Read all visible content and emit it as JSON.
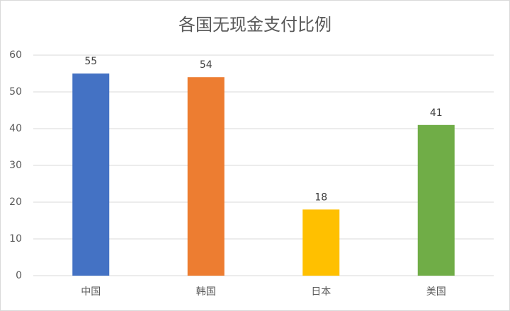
{
  "chart_data": {
    "type": "bar",
    "title": "各国无现金支付比例",
    "categories": [
      "中国",
      "韩国",
      "日本",
      "美国"
    ],
    "values": [
      55,
      54,
      18,
      41
    ],
    "colors": [
      "#4472c4",
      "#ed7d31",
      "#ffc000",
      "#70ad47"
    ],
    "ylim": [
      0,
      60
    ],
    "yticks": [
      0,
      10,
      20,
      30,
      40,
      50,
      60
    ],
    "grid": true,
    "data_labels": true
  }
}
